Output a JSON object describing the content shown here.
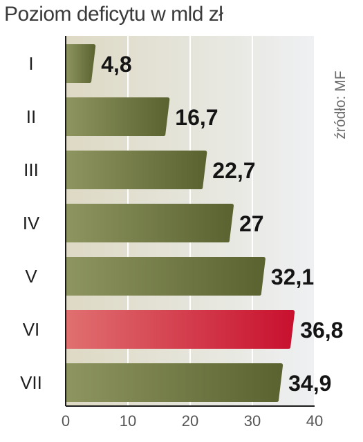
{
  "title": "Poziom deficytu w mld zł",
  "source": "źródło: MF",
  "colors": {
    "bar": "#5a6230",
    "bar_light": "#8e9560",
    "highlight": "#c8102e",
    "highlight_light": "#e07070",
    "plot_bg_start": "#ddd9c4",
    "plot_bg_end": "#eef0f2",
    "axis": "#1a1a1a",
    "grid": "#ffffff"
  },
  "chart_data": {
    "type": "bar",
    "orientation": "horizontal",
    "title": "Poziom deficytu w mld zł",
    "categories": [
      "I",
      "II",
      "III",
      "IV",
      "V",
      "VI",
      "VII"
    ],
    "values": [
      4.8,
      16.7,
      22.7,
      27,
      32.1,
      36.8,
      34.9
    ],
    "value_labels": [
      "4,8",
      "16,7",
      "22,7",
      "27",
      "32,1",
      "36,8",
      "34,9"
    ],
    "highlight_index": 5,
    "xlim": [
      0,
      40
    ],
    "xticks": [
      0,
      10,
      20,
      30,
      40
    ],
    "xlabel": "",
    "ylabel": "",
    "grid": true
  }
}
